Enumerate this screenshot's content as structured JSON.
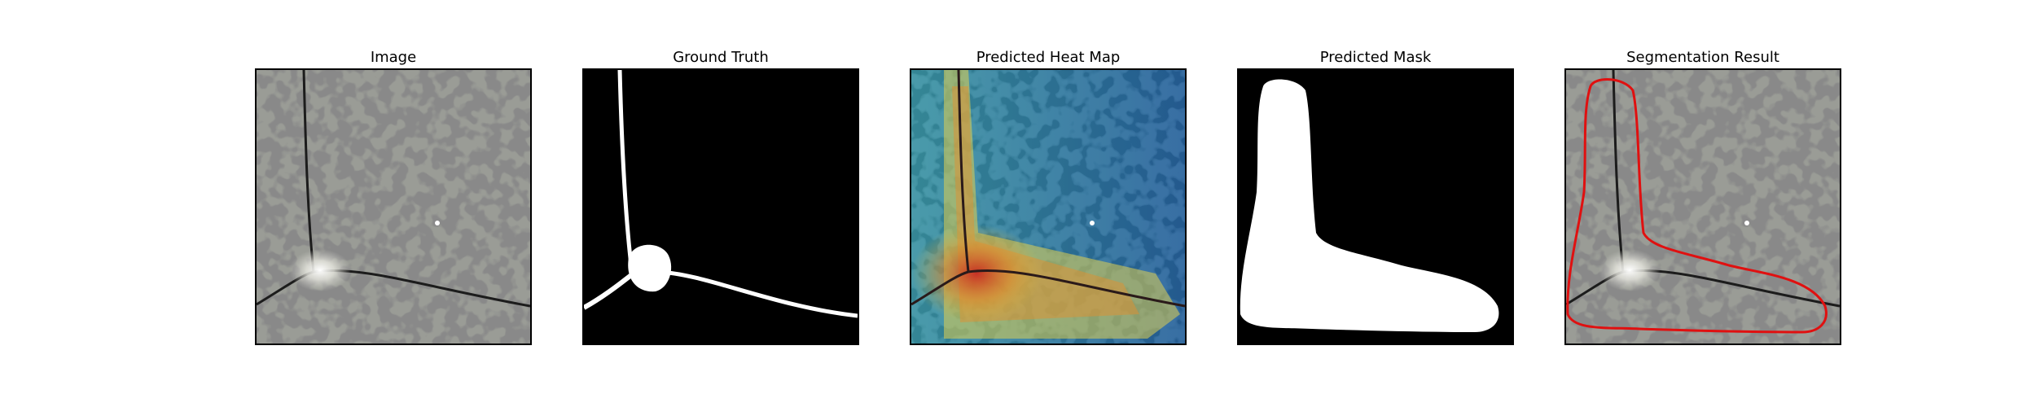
{
  "figure": {
    "panels": [
      {
        "id": "image",
        "title": "Image",
        "icon": "grayscale-surface-image"
      },
      {
        "id": "ground_truth",
        "title": "Ground Truth",
        "icon": "binary-mask-image"
      },
      {
        "id": "heat_map",
        "title": "Predicted Heat Map",
        "icon": "heatmap-overlay-image"
      },
      {
        "id": "pred_mask",
        "title": "Predicted Mask",
        "icon": "binary-mask-image"
      },
      {
        "id": "seg_result",
        "title": "Segmentation Result",
        "icon": "contour-overlay-image"
      }
    ],
    "colors": {
      "background": "#ffffff",
      "mask_foreground": "#ffffff",
      "mask_background": "#000000",
      "contour": "#e01010",
      "heat_hot": "#c0282a",
      "heat_cool": "#1f5f9a"
    }
  }
}
